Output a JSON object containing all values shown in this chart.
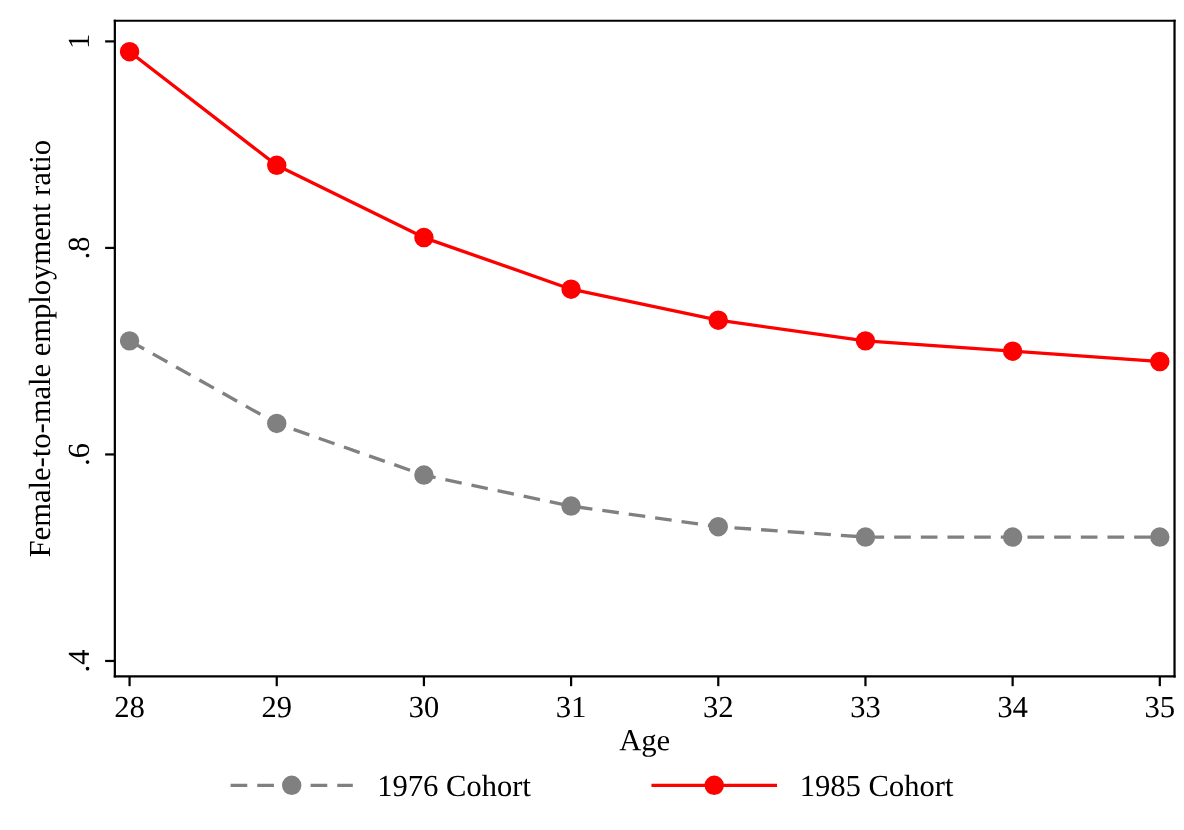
{
  "chart_data": {
    "type": "line",
    "xlabel": "Age",
    "ylabel": "Female-to-male employment ratio",
    "x": [
      28,
      29,
      30,
      31,
      32,
      33,
      34,
      35
    ],
    "series": [
      {
        "name": "1976 Cohort",
        "color": "#808080",
        "line_style": "dashed",
        "marker": "circle",
        "values": [
          0.71,
          0.63,
          0.58,
          0.55,
          0.53,
          0.52,
          0.52,
          0.52
        ]
      },
      {
        "name": "1985 Cohort",
        "color": "#ff0000",
        "line_style": "solid",
        "marker": "circle",
        "values": [
          0.99,
          0.88,
          0.81,
          0.76,
          0.73,
          0.71,
          0.7,
          0.69
        ]
      }
    ],
    "xlim": [
      27.9,
      35.1
    ],
    "xticks": [
      28,
      29,
      30,
      31,
      32,
      33,
      34,
      35
    ],
    "ylim": [
      0.385,
      1.02
    ],
    "yticks": [
      {
        "value": 0.4,
        "label": ".4"
      },
      {
        "value": 0.6,
        "label": ".6"
      },
      {
        "value": 0.8,
        "label": ".8"
      },
      {
        "value": 1,
        "label": "1"
      }
    ],
    "grid": false,
    "legend": "bottom"
  }
}
